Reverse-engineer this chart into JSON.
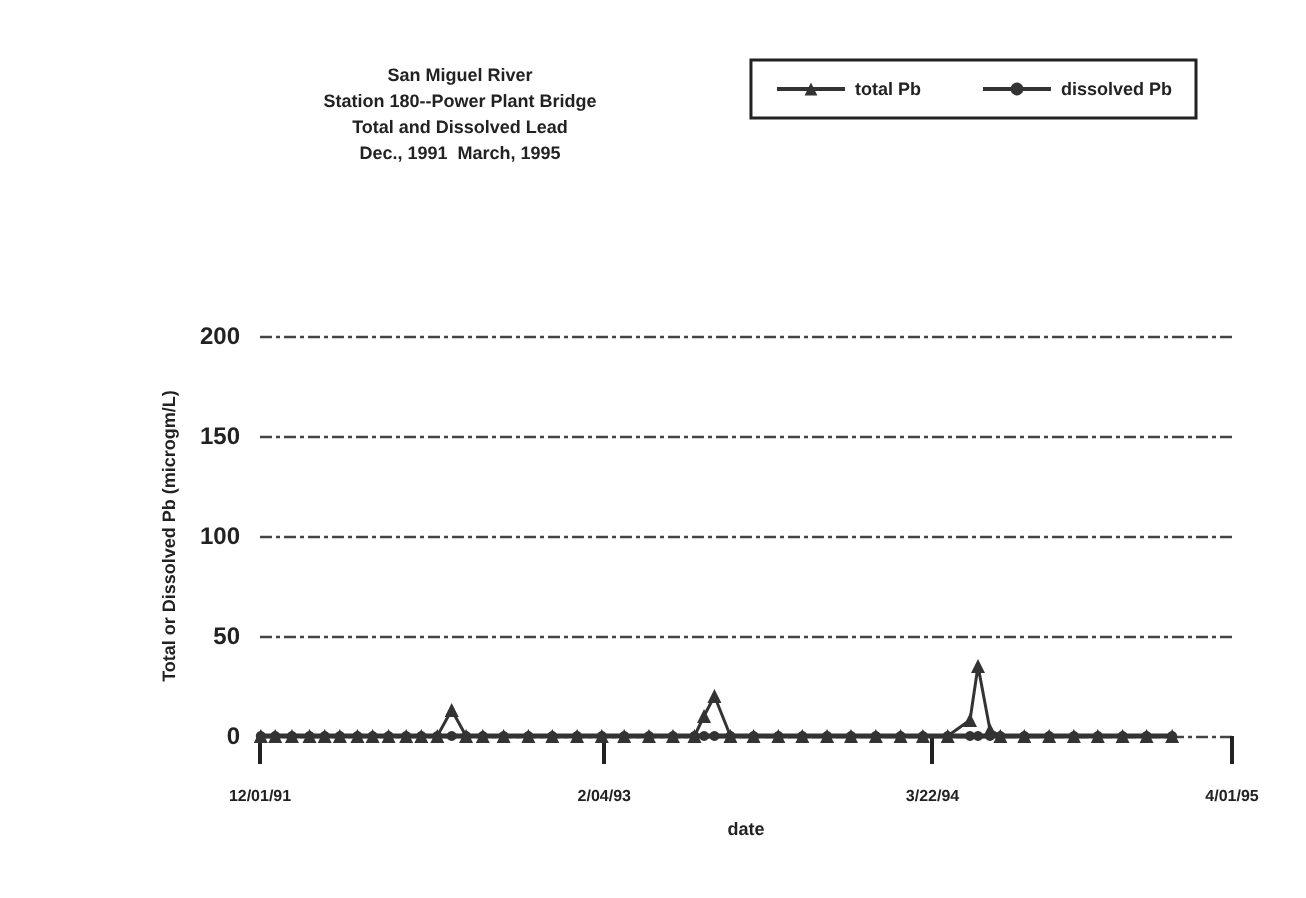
{
  "chart_data": {
    "type": "line",
    "title": "San Miguel River",
    "subtitle": "Station 180--Power Plant Bridge\nTotal and Dissolved Lead\nDec., 1991  March, 1995",
    "xlabel": "date",
    "ylabel": "Total or Dissolved Pb (microgm/L)",
    "x": [
      "1991-12-02",
      "1991-12-20",
      "1992-01-10",
      "1992-02-01",
      "1992-02-20",
      "1992-03-10",
      "1992-04-01",
      "1992-04-20",
      "1992-05-10",
      "1992-06-01",
      "1992-06-20",
      "1992-07-10",
      "1992-07-28",
      "1992-08-15",
      "1992-09-05",
      "1992-10-01",
      "1992-11-01",
      "1992-12-01",
      "1993-01-01",
      "1993-02-01",
      "1993-03-01",
      "1993-04-01",
      "1993-05-01",
      "1993-05-28",
      "1993-06-09",
      "1993-06-22",
      "1993-07-12",
      "1993-08-10",
      "1993-09-10",
      "1993-10-10",
      "1993-11-10",
      "1993-12-10",
      "1994-01-10",
      "1994-02-10",
      "1994-03-10",
      "1994-04-10",
      "1994-05-08",
      "1994-05-18",
      "1994-06-02",
      "1994-06-15",
      "1994-07-15",
      "1994-08-15",
      "1994-09-15",
      "1994-10-15",
      "1994-11-15",
      "1994-12-15",
      "1995-01-16"
    ],
    "series": [
      {
        "name": "total Pb",
        "color": "#333333",
        "marker": "triangle",
        "values": [
          0,
          0,
          0,
          0,
          0,
          0,
          0,
          0,
          0,
          0,
          0,
          0,
          13,
          0,
          0,
          0,
          0,
          0,
          0,
          0,
          0,
          0,
          0,
          0,
          10,
          20,
          0,
          0,
          0,
          0,
          0,
          0,
          0,
          0,
          0,
          0,
          8,
          35,
          3,
          0,
          0,
          0,
          0,
          0,
          0,
          0,
          0
        ]
      },
      {
        "name": "dissolved Pb",
        "color": "#333333",
        "marker": "circle",
        "values": [
          0,
          0,
          0,
          0,
          0,
          0,
          0,
          0,
          0,
          0,
          0,
          0,
          0,
          0,
          0,
          0,
          0,
          0,
          0,
          0,
          0,
          0,
          0,
          0,
          0,
          0,
          0,
          0,
          0,
          0,
          0,
          0,
          0,
          0,
          0,
          0,
          0,
          0,
          0,
          0,
          0,
          0,
          0,
          0,
          0,
          0,
          0
        ]
      }
    ],
    "xlim": [
      "1991-12-01",
      "1995-04-01"
    ],
    "xticks": [
      {
        "value": "1991-12-01",
        "label": "12/01/91"
      },
      {
        "value": "1993-02-04",
        "label": "2/04/93"
      },
      {
        "value": "1994-03-22",
        "label": "3/22/94"
      },
      {
        "value": "1995-04-01",
        "label": "4/01/95"
      }
    ],
    "ylim": [
      0,
      200
    ],
    "yticks": [
      0,
      50,
      100,
      150,
      200
    ],
    "grid": "y",
    "legend": "top right",
    "line_style": "solid"
  }
}
